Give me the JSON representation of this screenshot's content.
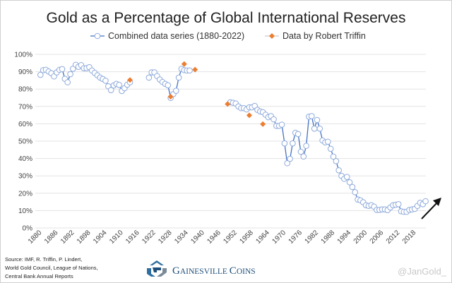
{
  "chart_data": {
    "type": "line",
    "title": "Gold as a Percentage of Global International Reserves",
    "xlabel": "",
    "ylabel": "",
    "xlim": [
      1880,
      2022
    ],
    "ylim": [
      0,
      100
    ],
    "y_ticks": [
      "0%",
      "10%",
      "20%",
      "30%",
      "40%",
      "50%",
      "60%",
      "70%",
      "80%",
      "90%",
      "100%"
    ],
    "x_ticks": [
      "1880",
      "1886",
      "1892",
      "1898",
      "1904",
      "1910",
      "1916",
      "1922",
      "1928",
      "1934",
      "1940",
      "1946",
      "1952",
      "1958",
      "1964",
      "1970",
      "1976",
      "1982",
      "1988",
      "1994",
      "2000",
      "2006",
      "2012",
      "2018"
    ],
    "grid": "horizontal",
    "legend_position": "top",
    "series": [
      {
        "name": "Combined data series (1880-2022)",
        "color": "#4472c4",
        "marker": "open-circle",
        "segments": [
          {
            "start_year": 1880,
            "values": [
              88.2,
              90.9,
              91.1,
              90.1,
              89.1,
              87.3,
              89.6,
              91.1,
              91.5,
              85.9,
              83.9,
              88.6,
              91.7,
              94.0,
              92.8,
              93.8,
              92.0,
              92.0,
              92.6,
              90.7,
              89.3,
              87.9,
              86.6,
              85.8,
              84.8,
              81.6,
              79.4,
              82.1,
              83.0,
              82.4,
              78.9,
              80.5,
              82.5,
              83.9
            ]
          },
          {
            "start_year": 1920,
            "values": [
              86.6,
              89.6,
              89.6,
              87.5,
              85.5,
              84.1,
              83.0,
              82.2,
              74.9,
              77.1,
              79.0,
              86.6,
              91.6,
              90.9,
              90.7,
              90.7
            ]
          },
          {
            "start_year": 1950,
            "values": [
              72.4,
              72.1,
              71.7,
              70.0,
              69.0,
              69.0,
              68.3,
              69.5,
              69.5,
              70.3,
              68.0,
              67.1,
              66.7,
              65.2,
              63.8,
              64.4,
              62.6,
              58.8,
              58.8,
              59.5,
              48.7,
              37.3,
              39.8,
              48.7,
              54.8,
              54.1,
              43.9,
              41.2,
              47.3,
              64.1,
              64.4,
              57.2,
              62.2,
              57.2,
              50.4,
              49.3,
              49.7,
              45.6,
              41.1,
              38.5,
              33.2,
              30.0,
              28.3,
              29.4,
              26.3,
              23.6,
              20.6,
              16.4,
              15.9,
              14.8,
              13.1,
              12.7,
              13.1,
              12.3,
              10.4,
              10.4,
              10.7,
              10.7,
              10.3,
              11.8,
              13.1,
              13.4,
              13.7,
              9.6,
              9.3,
              9.3,
              10.4,
              10.7,
              11.0,
              12.7,
              14.5,
              13.7,
              15.4
            ]
          }
        ]
      },
      {
        "name": "Data by Robert Triffin",
        "color": "#ed7d31",
        "marker": "diamond",
        "points": [
          [
            1913,
            85.2
          ],
          [
            1928,
            75.6
          ],
          [
            1933,
            94.4
          ],
          [
            1937,
            91.2
          ],
          [
            1949,
            71.4
          ],
          [
            1957,
            64.9
          ],
          [
            1962,
            59.8
          ]
        ]
      }
    ],
    "annotations": [
      "upward-trend-arrow"
    ]
  },
  "footer": {
    "source_lines": [
      "Source: IMF, R. Triffin, P. Lindert,",
      "World Gold Council, League of Nations,",
      "Central Bank Annual Reports"
    ],
    "brand_first_G": "G",
    "brand_rest_1": "AINESVILLE ",
    "brand_C": "C",
    "brand_rest_2": "OINS",
    "brand_name": "Gainesville Coins",
    "handle": "@JanGold_"
  }
}
